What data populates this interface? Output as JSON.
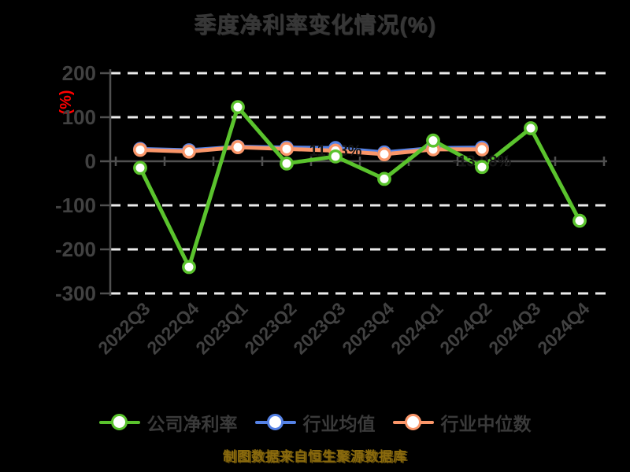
{
  "title": "季度净利率变化情况(%)",
  "y_axis_label": "(%)",
  "footer": "制图数据来自恒生聚源数据库",
  "colors": {
    "company": "#5ac32d",
    "mean": "#5582e6",
    "median": "#fa9669",
    "grid": "#ebebeb",
    "axis": "#505050",
    "tick_label": "#414141",
    "title_text": "#373737",
    "y_unit": "#ff0000",
    "footer_text": "#8a6a0d",
    "annotation": "#161616",
    "marker_fill": "#ffffff",
    "background": "#000000"
  },
  "chart_data": {
    "type": "line",
    "title": "季度净利率变化情况(%)",
    "ylabel": "(%)",
    "categories": [
      "2022Q3",
      "2022Q4",
      "2023Q1",
      "2023Q2",
      "2023Q3",
      "2023Q4",
      "2024Q1",
      "2024Q2",
      "2024Q3",
      "2024Q4"
    ],
    "series": [
      {
        "key": "company-net-margin",
        "name": "公司净利率",
        "color_key": "company",
        "values": [
          -15,
          -240,
          123,
          -5,
          11,
          -40,
          47,
          -13,
          75,
          -135
        ]
      },
      {
        "key": "industry-mean",
        "name": "行业均值",
        "color_key": "mean",
        "values": [
          28,
          25,
          33,
          31,
          30,
          20,
          30,
          31,
          null,
          null
        ]
      },
      {
        "key": "industry-median",
        "name": "行业中位数",
        "color_key": "median",
        "values": [
          26,
          22,
          32,
          28,
          24,
          16,
          27,
          27,
          null,
          null
        ]
      }
    ],
    "ylim": [
      -300,
      200
    ],
    "yticks": [
      200,
      100,
      0,
      -100,
      -200,
      -300
    ],
    "grid": "horizontal-dashed",
    "legend_position": "bottom",
    "annotations": [
      {
        "text": "11.08%",
        "x_index": 4,
        "y_value": 11
      },
      {
        "text": "-13.08%",
        "x_index": 7,
        "y_value": -13
      }
    ]
  }
}
